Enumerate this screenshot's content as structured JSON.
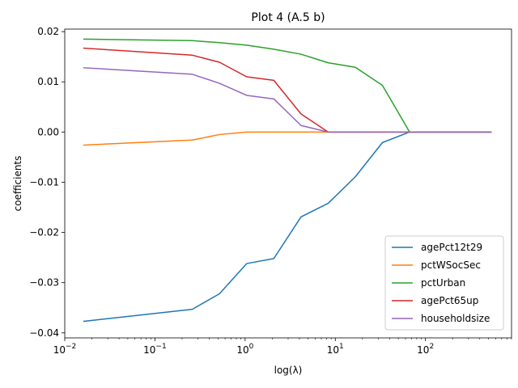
{
  "chart_data": {
    "type": "line",
    "title": "Plot 4 (A.5 b)",
    "xlabel": "log(λ)",
    "ylabel": "coefficients",
    "xscale": "log",
    "xlim": [
      0.01,
      900
    ],
    "ylim": [
      -0.041,
      0.0205
    ],
    "grid": false,
    "legend_position": "lower-right",
    "x_tick_labels": [
      {
        "value": 0.01,
        "base": "10",
        "exp": "−2"
      },
      {
        "value": 0.1,
        "base": "10",
        "exp": "−1"
      },
      {
        "value": 1,
        "base": "10",
        "exp": "0"
      },
      {
        "value": 10,
        "base": "10",
        "exp": "1"
      },
      {
        "value": 100,
        "base": "10",
        "exp": "2"
      }
    ],
    "y_ticks": [
      {
        "value": 0.02,
        "label": "0.02"
      },
      {
        "value": 0.01,
        "label": "0.01"
      },
      {
        "value": 0.0,
        "label": "0.00"
      },
      {
        "value": -0.01,
        "label": "−0.01"
      },
      {
        "value": -0.02,
        "label": "−0.02"
      },
      {
        "value": -0.03,
        "label": "−0.03"
      },
      {
        "value": -0.04,
        "label": "−0.04"
      }
    ],
    "x": [
      0.0163,
      0.26,
      0.52,
      1.04,
      2.08,
      4.17,
      8.33,
      16.7,
      33.3,
      66.7,
      133,
      267,
      533
    ],
    "series": [
      {
        "name": "agePct12t29",
        "color": "#1f77b4",
        "values": [
          -0.0377,
          -0.0353,
          -0.0322,
          -0.0262,
          -0.0252,
          -0.0169,
          -0.0142,
          -0.0089,
          -0.0021,
          0.0,
          0.0,
          0.0,
          0.0
        ]
      },
      {
        "name": "pctWSocSec",
        "color": "#ff7f0e",
        "values": [
          -0.0026,
          -0.0016,
          -0.0005,
          0.0,
          0.0,
          0.0,
          0.0,
          0.0,
          0.0,
          0.0,
          0.0,
          0.0,
          0.0
        ]
      },
      {
        "name": "pctUrban",
        "color": "#2ca02c",
        "values": [
          0.0185,
          0.0182,
          0.0178,
          0.0173,
          0.0165,
          0.0155,
          0.0138,
          0.0129,
          0.0093,
          0.0,
          0.0,
          0.0,
          0.0
        ]
      },
      {
        "name": "agePct65up",
        "color": "#d62728",
        "values": [
          0.0167,
          0.0153,
          0.0139,
          0.011,
          0.0103,
          0.0036,
          0.0,
          0.0,
          0.0,
          0.0,
          0.0,
          0.0,
          0.0
        ]
      },
      {
        "name": "householdsize",
        "color": "#9467bd",
        "values": [
          0.0128,
          0.0115,
          0.0097,
          0.0073,
          0.0066,
          0.0013,
          0.0,
          0.0,
          0.0,
          0.0,
          0.0,
          0.0,
          0.0
        ]
      }
    ]
  }
}
